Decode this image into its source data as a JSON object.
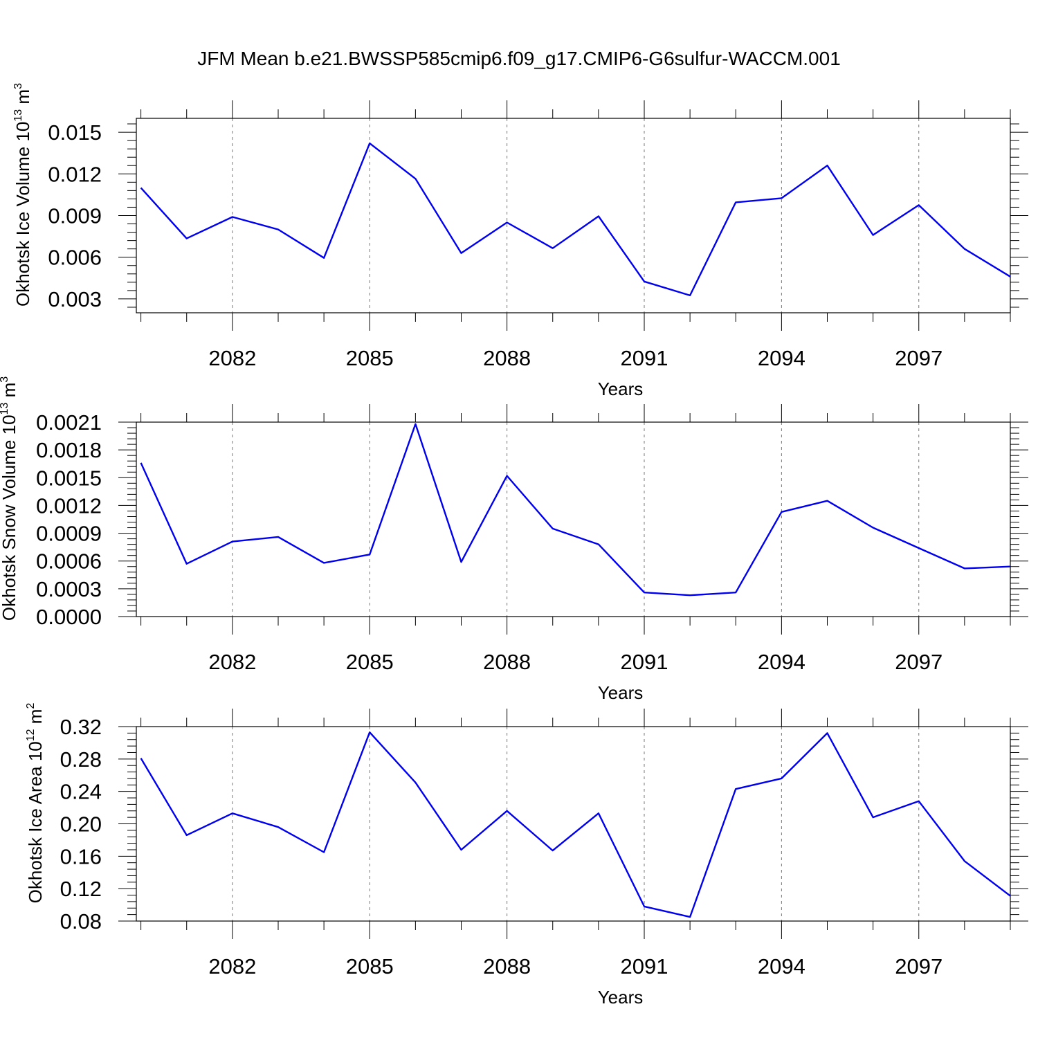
{
  "title": "JFM Mean b.e21.BWSSP585cmip6.f09_g17.CMIP6-G6sulfur-WACCM.001",
  "colors": {
    "series": "#0000f0",
    "axis": "#000000",
    "grid": "#777777"
  },
  "chart_data": [
    {
      "type": "line",
      "ylabel_main": "Okhotsk Ice Volume 10",
      "ylabel_exp": "13",
      "ylabel_unit": "m",
      "ylabel_unit_exp": "3",
      "xlabel": "Years",
      "x": [
        2080,
        2081,
        2082,
        2083,
        2084,
        2085,
        2086,
        2087,
        2088,
        2089,
        2090,
        2091,
        2092,
        2093,
        2094,
        2095,
        2096,
        2097,
        2098,
        2099
      ],
      "values": [
        0.011,
        0.00735,
        0.0089,
        0.008,
        0.00595,
        0.0142,
        0.01165,
        0.0063,
        0.0085,
        0.00665,
        0.00895,
        0.00425,
        0.00325,
        0.00995,
        0.01025,
        0.0126,
        0.0076,
        0.00975,
        0.0066,
        0.0046
      ],
      "xlim": [
        2079.9,
        2099
      ],
      "ylim": [
        0.002,
        0.016
      ],
      "yticks": [
        "0.003",
        "0.006",
        "0.009",
        "0.012",
        "0.015"
      ],
      "xticks": [
        "2082",
        "2085",
        "2088",
        "2091",
        "2094",
        "2097"
      ],
      "grid": "vertical dashed at major x ticks"
    },
    {
      "type": "line",
      "ylabel_main": "Okhotsk Snow Volume 10",
      "ylabel_exp": "13",
      "ylabel_unit": "m",
      "ylabel_unit_exp": "3",
      "xlabel": "Years",
      "x": [
        2080,
        2081,
        2082,
        2083,
        2084,
        2085,
        2086,
        2087,
        2088,
        2089,
        2090,
        2091,
        2092,
        2093,
        2094,
        2095,
        2096,
        2097,
        2098,
        2099
      ],
      "values": [
        0.00166,
        0.00057,
        0.00081,
        0.00086,
        0.00058,
        0.00067,
        0.00208,
        0.00059,
        0.00152,
        0.00095,
        0.00078,
        0.00026,
        0.00023,
        0.00026,
        0.00113,
        0.00125,
        0.00096,
        0.00074,
        0.00052,
        0.00054
      ],
      "xlim": [
        2079.9,
        2099
      ],
      "ylim": [
        0.0,
        0.0021
      ],
      "yticks": [
        "0.0000",
        "0.0003",
        "0.0006",
        "0.0009",
        "0.0012",
        "0.0015",
        "0.0018",
        "0.0021"
      ],
      "xticks": [
        "2082",
        "2085",
        "2088",
        "2091",
        "2094",
        "2097"
      ],
      "grid": "vertical dashed at major x ticks"
    },
    {
      "type": "line",
      "ylabel_main": "Okhotsk Ice Area 10",
      "ylabel_exp": "12",
      "ylabel_unit": "m",
      "ylabel_unit_exp": "2",
      "xlabel": "Years",
      "x": [
        2080,
        2081,
        2082,
        2083,
        2084,
        2085,
        2086,
        2087,
        2088,
        2089,
        2090,
        2091,
        2092,
        2093,
        2094,
        2095,
        2096,
        2097,
        2098,
        2099
      ],
      "values": [
        0.281,
        0.186,
        0.213,
        0.196,
        0.165,
        0.313,
        0.251,
        0.168,
        0.216,
        0.167,
        0.213,
        0.098,
        0.085,
        0.243,
        0.256,
        0.312,
        0.208,
        0.228,
        0.154,
        0.111
      ],
      "xlim": [
        2079.9,
        2099
      ],
      "ylim": [
        0.08,
        0.32
      ],
      "yticks": [
        "0.08",
        "0.12",
        "0.16",
        "0.20",
        "0.24",
        "0.28",
        "0.32"
      ],
      "xticks": [
        "2082",
        "2085",
        "2088",
        "2091",
        "2094",
        "2097"
      ],
      "grid": "vertical dashed at major x ticks"
    }
  ]
}
